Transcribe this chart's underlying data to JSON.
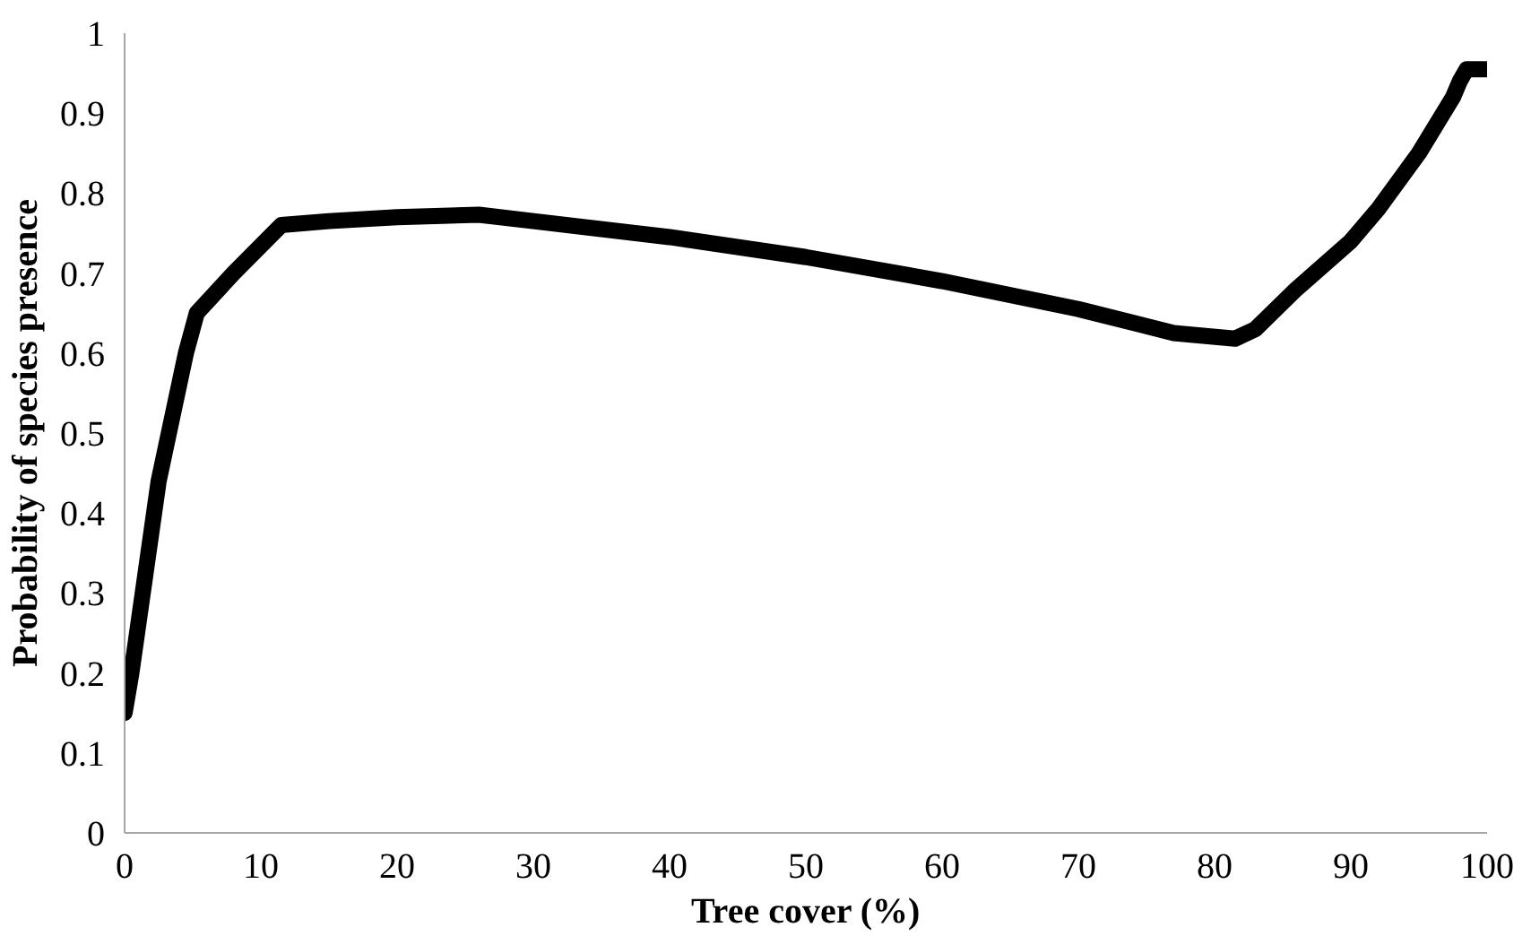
{
  "chart_data": {
    "type": "line",
    "xlabel": "Tree cover (%)",
    "ylabel": "Probability of species presence",
    "x": [
      0,
      0.5,
      1,
      1.5,
      2,
      2.5,
      3.5,
      4.5,
      5.3,
      8,
      11.5,
      15,
      20,
      26,
      30,
      40,
      50,
      60,
      70,
      77,
      81.5,
      83,
      86,
      90,
      92,
      95,
      97.5,
      98,
      98.5,
      100
    ],
    "series": [
      {
        "color": "#000000",
        "values": [
          0.15,
          0.2,
          0.26,
          0.32,
          0.38,
          0.44,
          0.52,
          0.6,
          0.65,
          0.7,
          0.76,
          0.765,
          0.77,
          0.773,
          0.765,
          0.745,
          0.72,
          0.69,
          0.655,
          0.625,
          0.618,
          0.63,
          0.68,
          0.74,
          0.78,
          0.85,
          0.92,
          0.94,
          0.955,
          0.955
        ]
      }
    ],
    "xlim": [
      0,
      100
    ],
    "ylim": [
      0,
      1
    ],
    "xticks": [
      0,
      10,
      20,
      30,
      40,
      50,
      60,
      70,
      80,
      90,
      100
    ],
    "yticks": [
      0,
      0.1,
      0.2,
      0.3,
      0.4,
      0.5,
      0.6,
      0.7,
      0.8,
      0.9,
      1
    ],
    "line_style": "solid",
    "grid": false
  }
}
